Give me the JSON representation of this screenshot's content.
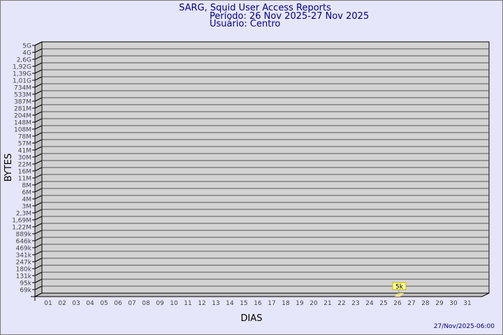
{
  "chart_data": {
    "type": "bar",
    "title": "SARG, Squid User Access Reports",
    "subtitle_period": "Período: 26 Nov 2025-27 Nov 2025",
    "subtitle_user": "Usuário: Centro",
    "xlabel": "DIAS",
    "ylabel": "BYTES",
    "yticks": [
      "5G",
      "4G",
      "2,6G",
      "1,92G",
      "1,39G",
      "1,01G",
      "734M",
      "533M",
      "387M",
      "281M",
      "204M",
      "148M",
      "108M",
      "78M",
      "57M",
      "41M",
      "30M",
      "22M",
      "16M",
      "11M",
      "8M",
      "6M",
      "4M",
      "3M",
      "2,3M",
      "1,69M",
      "1,22M",
      "889k",
      "646k",
      "469k",
      "341k",
      "247k",
      "180k",
      "131k",
      "95k",
      "69k"
    ],
    "categories": [
      "01",
      "02",
      "03",
      "04",
      "05",
      "06",
      "07",
      "08",
      "09",
      "10",
      "11",
      "12",
      "13",
      "14",
      "15",
      "16",
      "17",
      "18",
      "19",
      "20",
      "21",
      "22",
      "23",
      "24",
      "25",
      "26",
      "27",
      "28",
      "29",
      "30",
      "31"
    ],
    "bars": [
      {
        "category": "26",
        "value": 5000,
        "label": "5k"
      }
    ],
    "grid": true,
    "colors": {
      "background": "#e6e6fa",
      "plot": "#d3d3d3",
      "text": "#000080",
      "bar": "#ffe98a",
      "label_box": "#ffff99"
    }
  },
  "footer_timestamp": "27/Nov/2025-06:00"
}
